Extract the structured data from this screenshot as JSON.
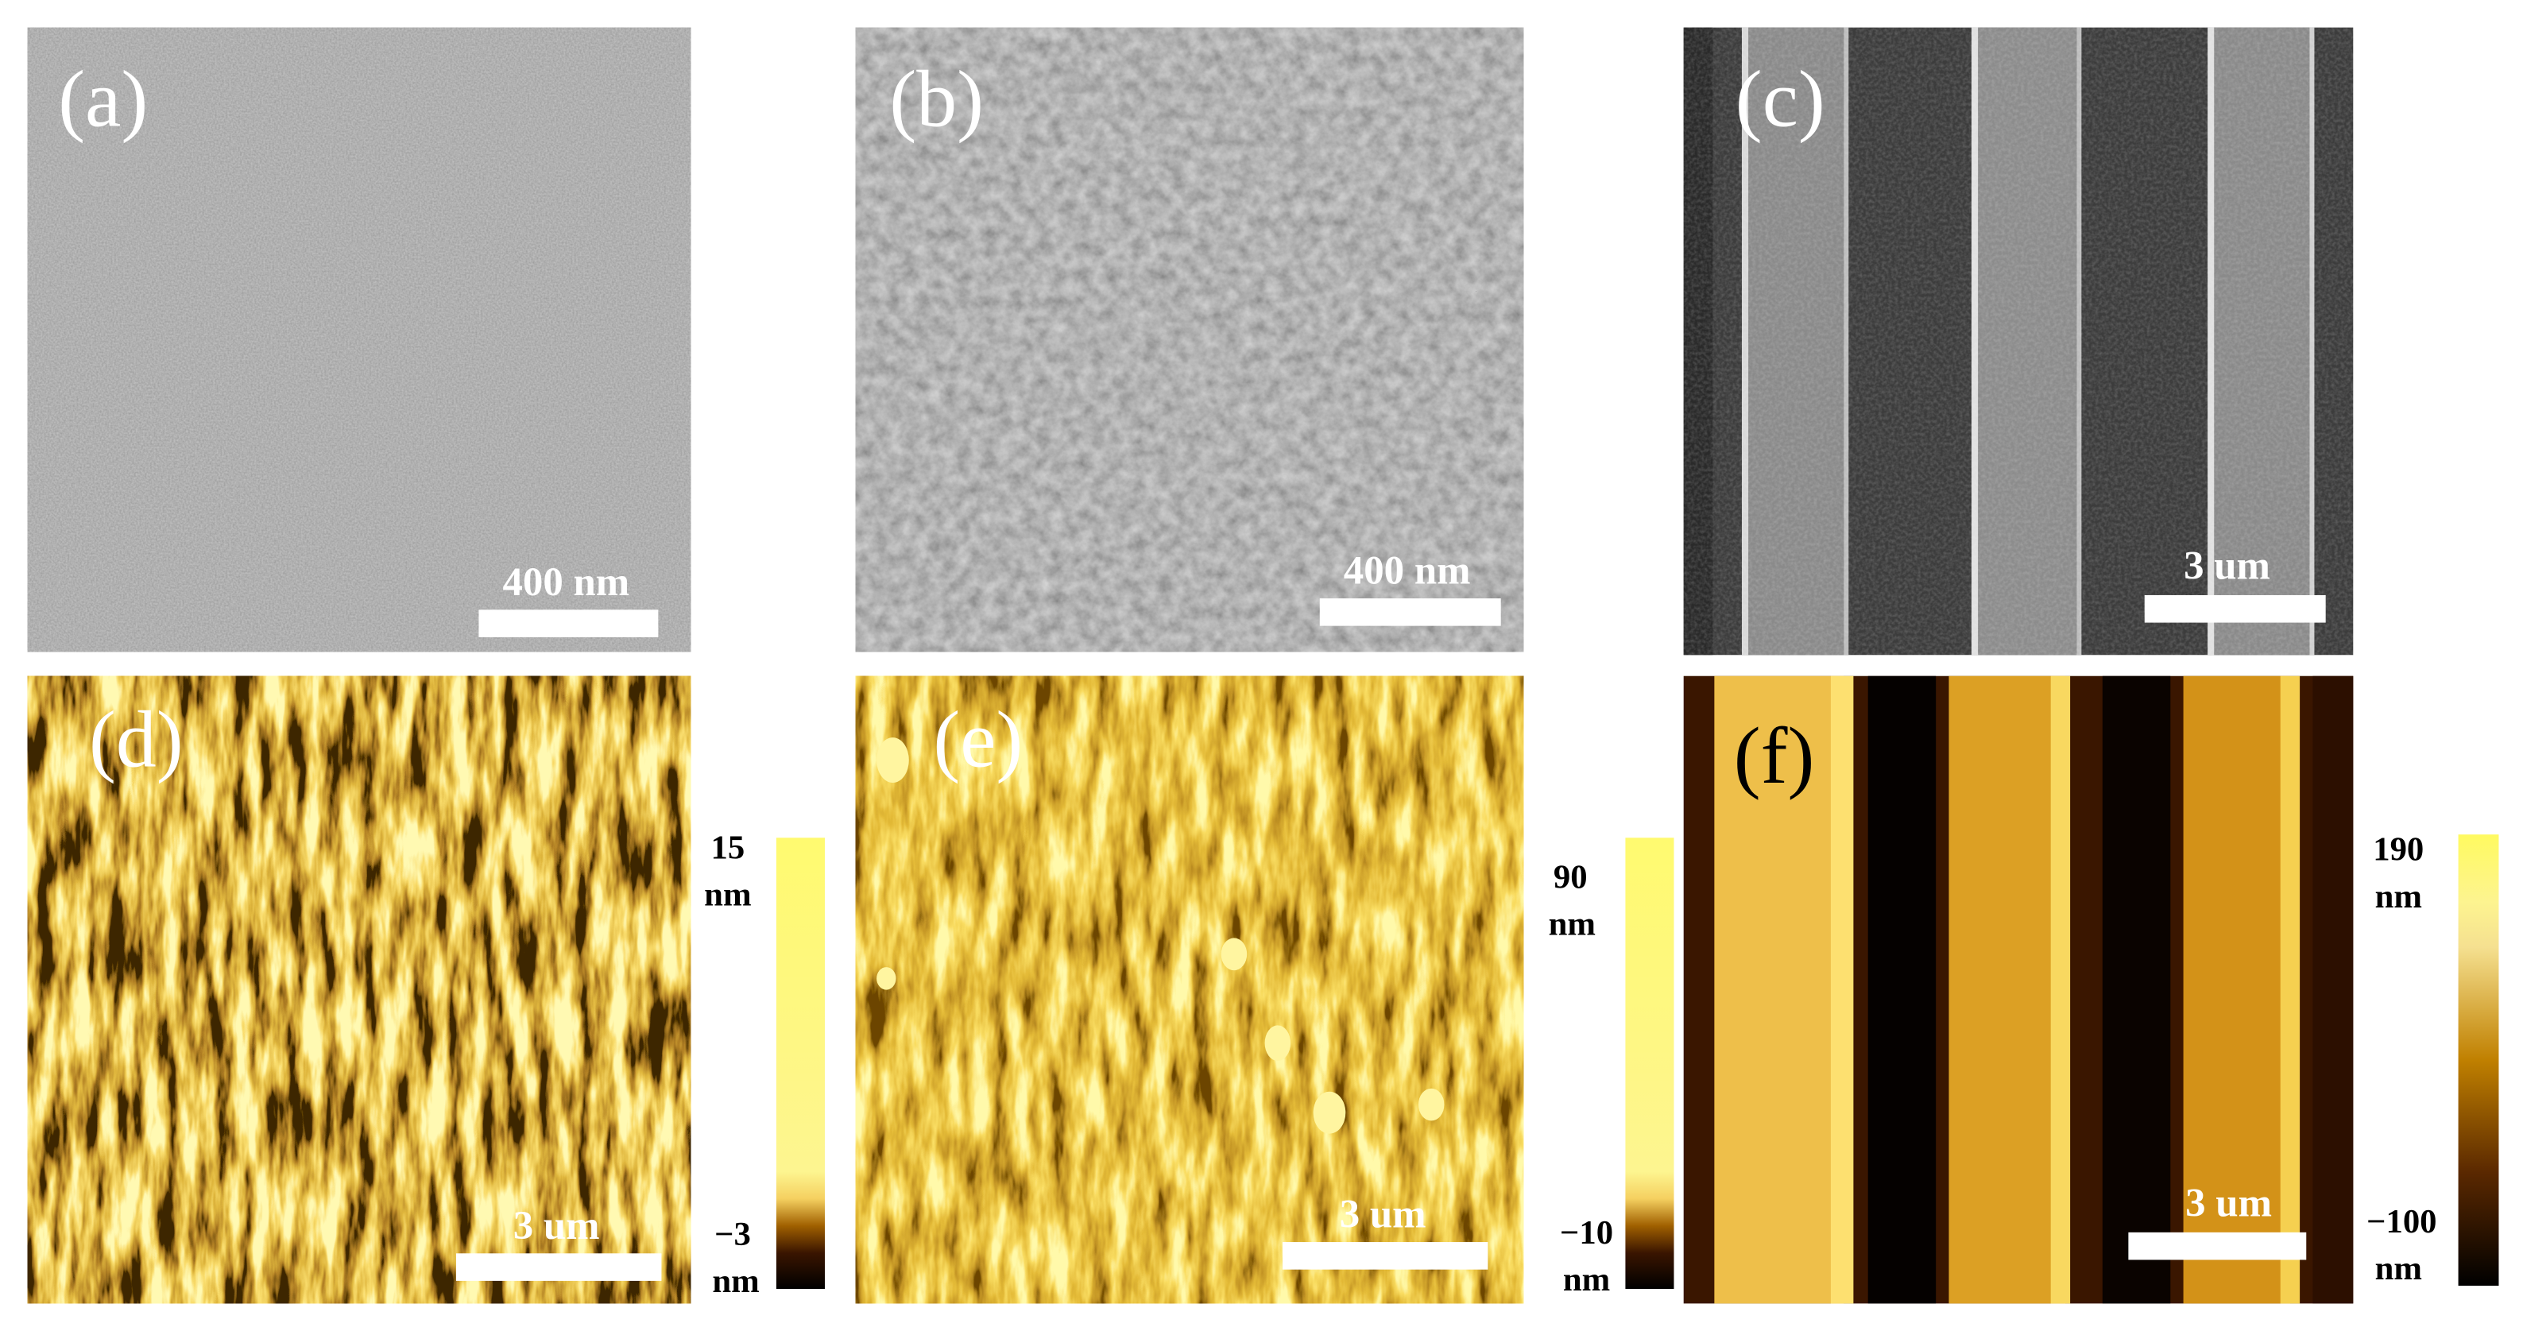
{
  "panels": [
    {
      "label": "(a)",
      "scale_bar": "400 nm"
    },
    {
      "label": "(b)",
      "scale_bar": "400 nm"
    },
    {
      "label": "(c)",
      "scale_bar": "3 um"
    },
    {
      "label": "(d)",
      "scale_bar": "3 um",
      "colorbar": {
        "max": "15",
        "min": "−3",
        "unit": "nm"
      }
    },
    {
      "label": "(e)",
      "scale_bar": "3 um",
      "colorbar": {
        "max": "90",
        "min": "−10",
        "unit": "nm"
      }
    },
    {
      "label": "(f)",
      "scale_bar": "3 um",
      "colorbar": {
        "max": "190",
        "min": "−100",
        "unit": "nm"
      }
    }
  ]
}
